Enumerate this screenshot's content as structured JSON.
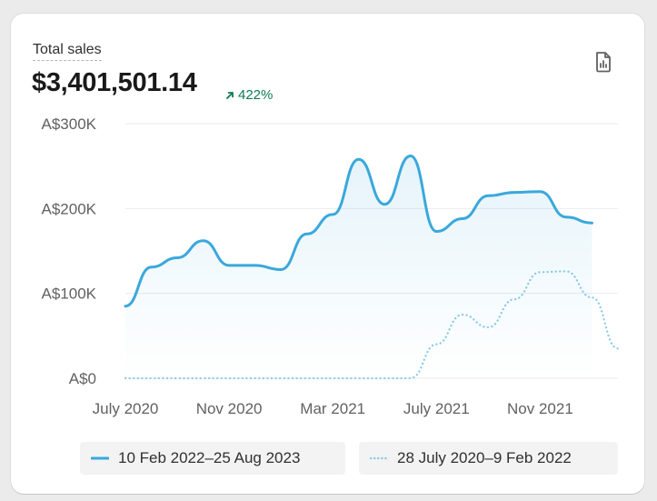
{
  "card": {
    "title": "Total sales",
    "total": "$3,401,501.14",
    "change": "422%",
    "export_icon": "report-icon"
  },
  "colors": {
    "primary": "#3aa8dc",
    "comparison": "#8ccbe8",
    "positive": "#0f7a55"
  },
  "chart_data": {
    "type": "line",
    "title": "Total sales",
    "xlabel": "",
    "ylabel": "",
    "y_ticks": [
      "A$0",
      "A$100K",
      "A$200K",
      "A$300K"
    ],
    "y_tick_values": [
      0,
      100000,
      200000,
      300000
    ],
    "ylim": [
      0,
      300000
    ],
    "x_ticks": [
      "July 2020",
      "Nov 2020",
      "Mar 2021",
      "July 2021",
      "Nov 2021"
    ],
    "x_tick_index": [
      0,
      4,
      8,
      12,
      16
    ],
    "grid": true,
    "legend_position": "bottom",
    "series": [
      {
        "name": "10 Feb 2022–25 Aug 2023",
        "style": "solid",
        "area": true,
        "values": [
          85000,
          131000,
          142000,
          162000,
          133000,
          133000,
          128000,
          170000,
          193000,
          258000,
          205000,
          262000,
          173000,
          188000,
          215000,
          219000,
          220000,
          190000,
          183000
        ]
      },
      {
        "name": "28 July 2020–9 Feb 2022",
        "style": "dotted",
        "area": false,
        "values": [
          0,
          0,
          0,
          0,
          0,
          0,
          0,
          0,
          0,
          0,
          0,
          0,
          40000,
          75000,
          60000,
          93000,
          125000,
          126000,
          95000,
          35000
        ]
      }
    ]
  }
}
